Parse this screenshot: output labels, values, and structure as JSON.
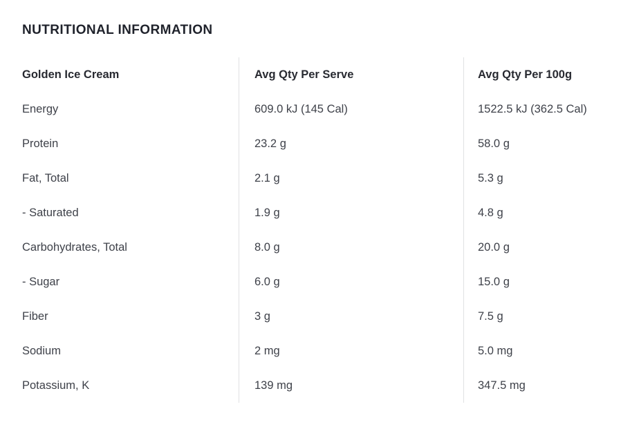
{
  "page": {
    "title": "NUTRITIONAL INFORMATION"
  },
  "table": {
    "columns": [
      "Golden Ice Cream",
      "Avg Qty Per Serve",
      "Avg Qty Per 100g"
    ],
    "rows": [
      {
        "label": "Energy",
        "per_serve": "609.0 kJ (145 Cal)",
        "per_100g": "1522.5 kJ (362.5 Cal)"
      },
      {
        "label": "Protein",
        "per_serve": "23.2 g",
        "per_100g": "58.0 g"
      },
      {
        "label": "Fat, Total",
        "per_serve": "2.1 g",
        "per_100g": "5.3 g"
      },
      {
        "label": "- Saturated",
        "per_serve": "1.9 g",
        "per_100g": "4.8 g"
      },
      {
        "label": "Carbohydrates, Total",
        "per_serve": "8.0 g",
        "per_100g": "20.0 g"
      },
      {
        "label": "- Sugar",
        "per_serve": "6.0 g",
        "per_100g": "15.0 g"
      },
      {
        "label": "Fiber",
        "per_serve": "3 g",
        "per_100g": "7.5 g"
      },
      {
        "label": "Sodium",
        "per_serve": "2 mg",
        "per_100g": "5.0 mg"
      },
      {
        "label": "Potassium, K",
        "per_serve": "139 mg",
        "per_100g": "347.5 mg"
      }
    ]
  },
  "colors": {
    "background": "#ffffff",
    "title_text": "#1f222b",
    "header_text": "#282a31",
    "body_text": "#3e4149",
    "divider": "#e0e1e3"
  }
}
